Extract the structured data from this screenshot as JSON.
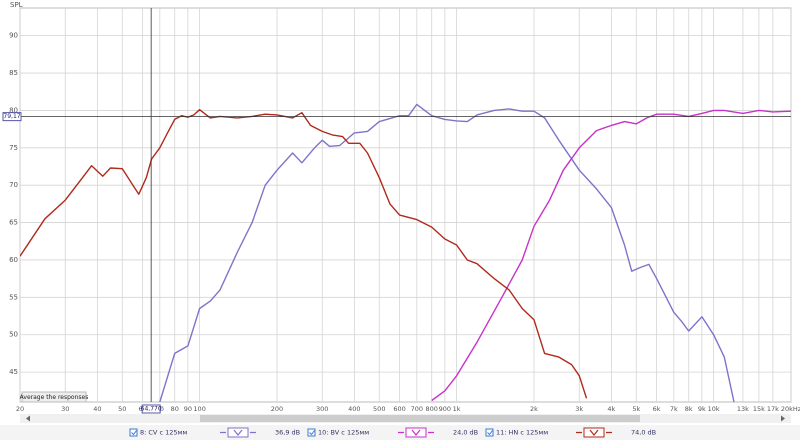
{
  "chart_data": {
    "type": "line",
    "y_label": "SPL",
    "log_x": true,
    "grid": true,
    "xlim": [
      20,
      20000
    ],
    "ylim": [
      41,
      93.7
    ],
    "xticks": [
      20,
      30,
      40,
      50,
      60,
      70,
      80,
      90,
      100,
      200,
      300,
      400,
      500,
      600,
      700,
      800,
      900,
      {
        "value": 1000,
        "label": "1k"
      },
      {
        "value": 2000,
        "label": "2k"
      },
      {
        "value": 3000,
        "label": "3k"
      },
      {
        "value": 4000,
        "label": "4k"
      },
      {
        "value": 5000,
        "label": "5k"
      },
      {
        "value": 6000,
        "label": "6k"
      },
      {
        "value": 7000,
        "label": "7k"
      },
      {
        "value": 8000,
        "label": "8k"
      },
      {
        "value": 9000,
        "label": "9k"
      },
      {
        "value": 10000,
        "label": "10k"
      },
      {
        "value": 13000,
        "label": "13k"
      },
      {
        "value": 15000,
        "label": "15k"
      },
      {
        "value": 17000,
        "label": "17k"
      },
      {
        "value": 20000,
        "label": "20kHz"
      }
    ],
    "yticks": [
      45,
      50,
      55,
      60,
      65,
      70,
      75,
      80,
      85,
      90
    ],
    "cursor": {
      "x": {
        "value": 64.77,
        "label": "64,770"
      },
      "y": {
        "value": 79.17,
        "label": "79,17"
      }
    },
    "button": "Average the responses",
    "series": [
      {
        "name": "8: CV c 125мм",
        "level": "36,9 dB",
        "color": "#7d74c9",
        "x": [
          70,
          80,
          90,
          100,
          110,
          120,
          140,
          160,
          180,
          200,
          230,
          250,
          280,
          300,
          320,
          350,
          400,
          450,
          500,
          600,
          650,
          700,
          800,
          900,
          1000,
          1100,
          1200,
          1400,
          1600,
          1800,
          2000,
          2200,
          2500,
          3000,
          3500,
          4000,
          4500,
          4800,
          5200,
          5600,
          6000,
          7000,
          7500,
          8000,
          9000,
          10000,
          11000,
          12000
        ],
        "values": [
          41,
          47.5,
          48.5,
          53.5,
          54.5,
          56,
          61,
          65,
          70,
          72,
          74.3,
          73,
          75,
          76,
          75.2,
          75.3,
          77,
          77.2,
          78.5,
          79.3,
          79.3,
          80.8,
          79.3,
          78.8,
          78.6,
          78.5,
          79.4,
          80,
          80.2,
          79.9,
          79.9,
          79,
          76,
          72,
          69.5,
          67,
          62,
          58.5,
          59,
          59.4,
          57.5,
          53,
          51.8,
          50.5,
          52.4,
          50,
          47,
          41
        ]
      },
      {
        "name": "10: BV c 125мм",
        "level": "24,0 dB",
        "color": "#c832c8",
        "x": [
          800,
          900,
          1000,
          1200,
          1500,
          1800,
          2000,
          2300,
          2600,
          3000,
          3500,
          4000,
          4500,
          5000,
          5500,
          6000,
          7000,
          8000,
          9000,
          10000,
          11000,
          13000,
          15000,
          17000,
          20000
        ],
        "values": [
          41.2,
          42.5,
          44.5,
          49,
          55,
          60,
          64.5,
          68,
          72,
          75,
          77.3,
          78,
          78.5,
          78.2,
          79,
          79.5,
          79.5,
          79.2,
          79.6,
          80,
          80,
          79.6,
          80,
          79.8,
          79.9
        ]
      },
      {
        "name": "11: HN c 125мм",
        "level": "74,0 dB",
        "color": "#b02a1c",
        "x": [
          20,
          25,
          30,
          35,
          38,
          42,
          45,
          50,
          55,
          58,
          62,
          65,
          70,
          75,
          80,
          85,
          90,
          95,
          100,
          110,
          120,
          140,
          160,
          180,
          200,
          230,
          250,
          270,
          300,
          330,
          360,
          380,
          420,
          450,
          500,
          550,
          600,
          700,
          800,
          900,
          1000,
          1100,
          1200,
          1400,
          1600,
          1800,
          2000,
          2200,
          2500,
          2800,
          3000,
          3200
        ],
        "values": [
          60.5,
          65.5,
          68,
          71,
          72.6,
          71.2,
          72.3,
          72.2,
          70,
          68.8,
          71,
          73.5,
          75,
          77,
          78.8,
          79.3,
          79.1,
          79.4,
          80.1,
          79,
          79.2,
          79,
          79.2,
          79.5,
          79.4,
          79,
          79.7,
          78,
          77.2,
          76.7,
          76.5,
          75.6,
          75.6,
          74.3,
          71,
          67.5,
          66,
          65.4,
          64.4,
          62.8,
          62,
          60,
          59.5,
          57.5,
          56,
          53.5,
          52,
          47.5,
          47,
          46,
          44.5,
          41.5
        ]
      }
    ]
  }
}
